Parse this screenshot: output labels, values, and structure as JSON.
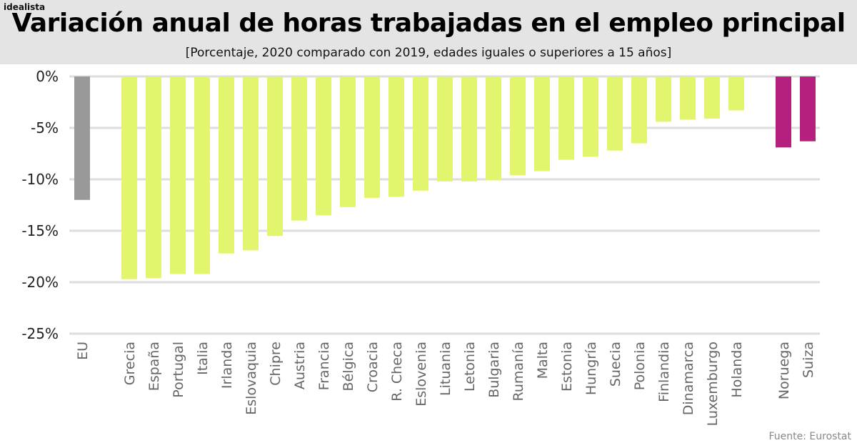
{
  "brand": "idealista",
  "chart_data": {
    "type": "bar",
    "title": "Variación anual de horas trabajadas en el empleo principal",
    "subtitle": "[Porcentaje, 2020 comparado con 2019, edades iguales o superiores a 15 años]",
    "source": "Fuente: Eurostat",
    "ylim": [
      -25,
      0
    ],
    "yticks": [
      0,
      -5,
      -10,
      -15,
      -20,
      -25
    ],
    "ytick_labels": [
      "0%",
      "-5%",
      "-10%",
      "-15%",
      "-20%",
      "-25%"
    ],
    "grid": true,
    "colors": {
      "eu": "#999999",
      "country": "#e3f56e",
      "non_eu": "#b5207f"
    },
    "categories": [
      "EU",
      "Grecia",
      "España",
      "Portugal",
      "Italia",
      "Irlanda",
      "Eslovaquia",
      "Chipre",
      "Austria",
      "Francia",
      "Bélgica",
      "Croacia",
      "R. Checa",
      "Eslovenia",
      "Lituania",
      "Letonia",
      "Bulgaria",
      "Rumanía",
      "Malta",
      "Estonia",
      "Hungría",
      "Suecia",
      "Polonia",
      "Finlandia",
      "Dinamarca",
      "Luxemburgo",
      "Holanda",
      "Noruega",
      "Suiza"
    ],
    "groups": [
      "eu",
      "country",
      "country",
      "country",
      "country",
      "country",
      "country",
      "country",
      "country",
      "country",
      "country",
      "country",
      "country",
      "country",
      "country",
      "country",
      "country",
      "country",
      "country",
      "country",
      "country",
      "country",
      "country",
      "country",
      "country",
      "country",
      "country",
      "non_eu",
      "non_eu"
    ],
    "values": [
      -12.0,
      -19.7,
      -19.6,
      -19.2,
      -19.2,
      -17.2,
      -16.9,
      -15.5,
      -14.0,
      -13.5,
      -12.7,
      -11.8,
      -11.7,
      -11.1,
      -10.2,
      -10.2,
      -10.1,
      -9.6,
      -9.2,
      -8.1,
      -7.8,
      -7.2,
      -6.5,
      -4.4,
      -4.2,
      -4.1,
      -3.3,
      -6.9,
      -6.3
    ]
  }
}
